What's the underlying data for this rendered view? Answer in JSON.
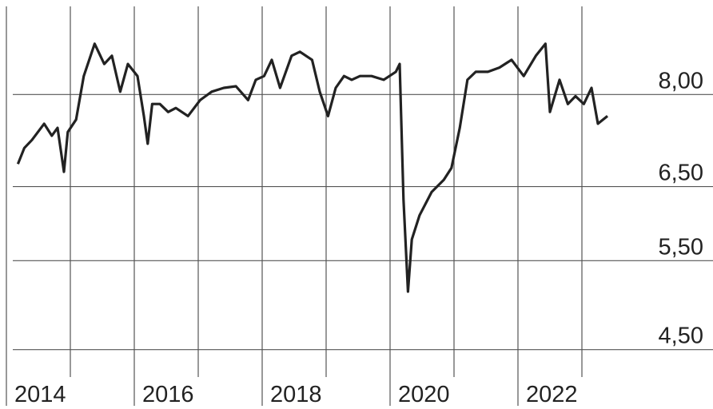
{
  "chart_data": {
    "type": "line",
    "log_y": true,
    "grid": true,
    "color": "#222222",
    "x": [
      2014.18,
      2014.28,
      2014.4,
      2014.59,
      2014.71,
      2014.8,
      2014.9,
      2014.96,
      2015.09,
      2015.21,
      2015.38,
      2015.53,
      2015.65,
      2015.78,
      2015.9,
      2016.05,
      2016.15,
      2016.21,
      2016.28,
      2016.4,
      2016.53,
      2016.65,
      2016.84,
      2017.03,
      2017.21,
      2017.4,
      2017.59,
      2017.78,
      2017.9,
      2018.03,
      2018.15,
      2018.28,
      2018.46,
      2018.59,
      2018.78,
      2018.9,
      2019.03,
      2019.15,
      2019.28,
      2019.4,
      2019.53,
      2019.71,
      2019.9,
      2020.09,
      2020.15,
      2020.21,
      2020.28,
      2020.34,
      2020.46,
      2020.65,
      2020.84,
      2020.96,
      2021.09,
      2021.21,
      2021.34,
      2021.53,
      2021.71,
      2021.9,
      2022.09,
      2022.28,
      2022.43,
      2022.5,
      2022.65,
      2022.78,
      2022.9,
      2023.03,
      2023.15,
      2023.25,
      2023.4
    ],
    "values": [
      6.84,
      7.09,
      7.22,
      7.49,
      7.29,
      7.42,
      6.72,
      7.35,
      7.56,
      8.34,
      8.97,
      8.57,
      8.73,
      8.05,
      8.57,
      8.34,
      7.62,
      7.16,
      7.83,
      7.83,
      7.69,
      7.76,
      7.62,
      7.9,
      8.05,
      8.12,
      8.15,
      7.9,
      8.27,
      8.34,
      8.65,
      8.12,
      8.73,
      8.81,
      8.65,
      8.05,
      7.62,
      8.12,
      8.34,
      8.27,
      8.34,
      8.34,
      8.27,
      8.42,
      8.57,
      6.31,
      5.13,
      5.77,
      6.09,
      6.42,
      6.6,
      6.78,
      7.42,
      8.27,
      8.42,
      8.42,
      8.5,
      8.65,
      8.34,
      8.73,
      8.97,
      7.69,
      8.27,
      7.83,
      7.97,
      7.83,
      8.12,
      7.49,
      7.62
    ],
    "xlim": [
      2013.9,
      2025.05
    ],
    "xticks": [
      2014,
      2016,
      2018,
      2020,
      2022
    ],
    "xminor": [
      2015,
      2017,
      2019,
      2021,
      2023
    ],
    "ylim": [
      4.2,
      9.9
    ],
    "yticks": [
      {
        "value": 4.5,
        "label": "4,50"
      },
      {
        "value": 5.5,
        "label": "5,50"
      },
      {
        "value": 6.5,
        "label": "6,50"
      },
      {
        "value": 8,
        "label": "8,00"
      }
    ]
  }
}
